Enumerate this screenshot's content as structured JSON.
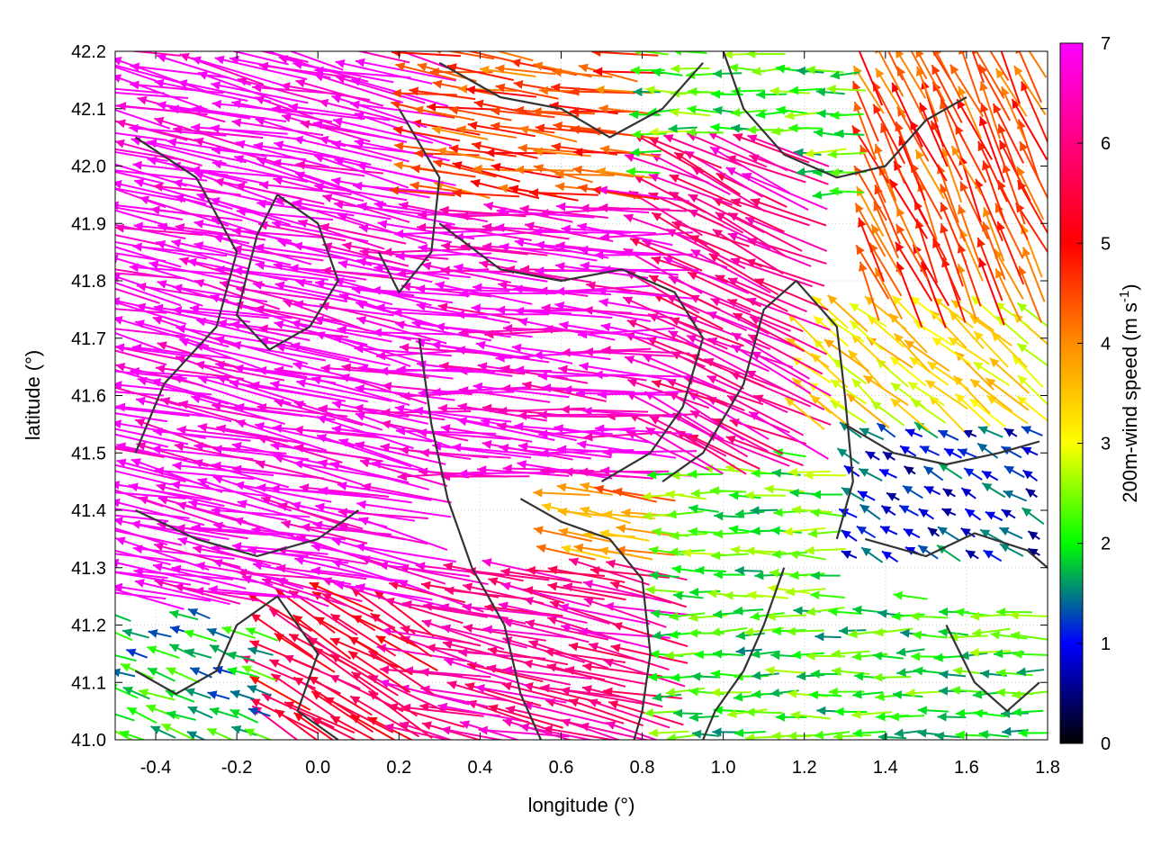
{
  "chart_data": {
    "type": "vector-field",
    "title": "",
    "xlabel": "longitude (°)",
    "ylabel": "latitude (°)",
    "xlim": [
      -0.5,
      1.8
    ],
    "ylim": [
      41.0,
      42.2
    ],
    "xticks": [
      "-0.4",
      "-0.2",
      "0.0",
      "0.2",
      "0.4",
      "0.6",
      "0.8",
      "1.0",
      "1.2",
      "1.4",
      "1.6",
      "1.8"
    ],
    "yticks": [
      "41.0",
      "41.1",
      "41.2",
      "41.3",
      "41.4",
      "41.5",
      "41.6",
      "41.7",
      "41.8",
      "41.9",
      "42.0",
      "42.1",
      "42.2"
    ],
    "grid": true,
    "colorbar": {
      "label_main": "200m-wind speed (m s",
      "label_sup": "-1",
      "label_close": ")",
      "range": [
        0,
        7
      ],
      "ticks": [
        "0",
        "1",
        "2",
        "3",
        "4",
        "5",
        "6",
        "7"
      ],
      "palette": [
        "#000000",
        "#0000ff",
        "#00ff00",
        "#ffff00",
        "#ff8c00",
        "#ff0000",
        "#ff00ff"
      ]
    },
    "wind_regions": [
      {
        "lon": [
          -0.5,
          0.25
        ],
        "lat": [
          41.25,
          42.2
        ],
        "speed": 7.0,
        "dir_deg": 168
      },
      {
        "lon": [
          0.25,
          0.85
        ],
        "lat": [
          41.45,
          41.95
        ],
        "speed": 6.8,
        "dir_deg": 176
      },
      {
        "lon": [
          0.85,
          1.2
        ],
        "lat": [
          41.5,
          42.05
        ],
        "speed": 6.2,
        "dir_deg": 155
      },
      {
        "lon": [
          0.25,
          0.8
        ],
        "lat": [
          41.95,
          42.2
        ],
        "speed": 4.5,
        "dir_deg": 172
      },
      {
        "lon": [
          0.8,
          1.35
        ],
        "lat": [
          41.95,
          42.2
        ],
        "speed": 2.2,
        "dir_deg": 180
      },
      {
        "lon": [
          1.35,
          1.8
        ],
        "lat": [
          41.75,
          42.2
        ],
        "speed": 4.5,
        "dir_deg": 115
      },
      {
        "lon": [
          1.2,
          1.8
        ],
        "lat": [
          41.55,
          41.75
        ],
        "speed": 3.2,
        "dir_deg": 140
      },
      {
        "lon": [
          1.3,
          1.8
        ],
        "lat": [
          41.3,
          41.55
        ],
        "speed": 1.1,
        "dir_deg": 150
      },
      {
        "lon": [
          0.85,
          1.3
        ],
        "lat": [
          41.25,
          41.5
        ],
        "speed": 2.2,
        "dir_deg": 178
      },
      {
        "lon": [
          0.6,
          0.85
        ],
        "lat": [
          41.3,
          41.5
        ],
        "speed": 4.0,
        "dir_deg": 170
      },
      {
        "lon": [
          0.85,
          1.8
        ],
        "lat": [
          41.0,
          41.25
        ],
        "speed": 2.1,
        "dir_deg": 180
      },
      {
        "lon": [
          0.25,
          0.85
        ],
        "lat": [
          41.0,
          41.3
        ],
        "speed": 6.2,
        "dir_deg": 168
      },
      {
        "lon": [
          -0.5,
          -0.1
        ],
        "lat": [
          41.0,
          41.22
        ],
        "speed": 1.8,
        "dir_deg": 160
      },
      {
        "lon": [
          -0.1,
          0.25
        ],
        "lat": [
          41.0,
          41.25
        ],
        "speed": 5.5,
        "dir_deg": 150
      }
    ],
    "contours": [
      [
        [
          -0.45,
          42.05
        ],
        [
          -0.3,
          41.98
        ],
        [
          -0.2,
          41.85
        ],
        [
          -0.25,
          41.72
        ],
        [
          -0.38,
          41.62
        ],
        [
          -0.45,
          41.5
        ]
      ],
      [
        [
          -0.1,
          41.95
        ],
        [
          0.0,
          41.9
        ],
        [
          0.05,
          41.8
        ],
        [
          -0.02,
          41.72
        ],
        [
          -0.12,
          41.68
        ],
        [
          -0.2,
          41.74
        ],
        [
          -0.15,
          41.88
        ],
        [
          -0.1,
          41.95
        ]
      ],
      [
        [
          0.2,
          42.1
        ],
        [
          0.3,
          41.98
        ],
        [
          0.28,
          41.85
        ],
        [
          0.2,
          41.78
        ],
        [
          0.15,
          41.85
        ]
      ],
      [
        [
          0.3,
          41.9
        ],
        [
          0.45,
          41.82
        ],
        [
          0.6,
          41.8
        ],
        [
          0.75,
          41.82
        ],
        [
          0.88,
          41.78
        ],
        [
          0.95,
          41.7
        ],
        [
          0.9,
          41.58
        ],
        [
          0.82,
          41.5
        ],
        [
          0.7,
          41.45
        ]
      ],
      [
        [
          0.25,
          41.7
        ],
        [
          0.28,
          41.55
        ],
        [
          0.32,
          41.42
        ],
        [
          0.38,
          41.3
        ],
        [
          0.46,
          41.2
        ],
        [
          0.5,
          41.08
        ],
        [
          0.55,
          41.0
        ]
      ],
      [
        [
          0.5,
          41.42
        ],
        [
          0.6,
          41.38
        ],
        [
          0.72,
          41.35
        ],
        [
          0.8,
          41.28
        ],
        [
          0.82,
          41.15
        ],
        [
          0.8,
          41.05
        ],
        [
          0.78,
          41.0
        ]
      ],
      [
        [
          0.85,
          41.45
        ],
        [
          0.95,
          41.5
        ],
        [
          1.05,
          41.62
        ],
        [
          1.1,
          41.75
        ],
        [
          1.18,
          41.8
        ],
        [
          1.28,
          41.72
        ],
        [
          1.3,
          41.6
        ],
        [
          1.32,
          41.45
        ],
        [
          1.28,
          41.35
        ]
      ],
      [
        [
          1.15,
          41.3
        ],
        [
          1.1,
          41.2
        ],
        [
          1.05,
          41.12
        ],
        [
          0.98,
          41.05
        ],
        [
          0.95,
          41.0
        ]
      ],
      [
        [
          1.35,
          41.35
        ],
        [
          1.5,
          41.32
        ],
        [
          1.62,
          41.36
        ],
        [
          1.75,
          41.33
        ],
        [
          1.8,
          41.3
        ]
      ],
      [
        [
          0.3,
          42.18
        ],
        [
          0.45,
          42.12
        ],
        [
          0.6,
          42.1
        ],
        [
          0.72,
          42.05
        ],
        [
          0.85,
          42.1
        ],
        [
          0.95,
          42.18
        ]
      ],
      [
        [
          1.0,
          42.2
        ],
        [
          1.05,
          42.1
        ],
        [
          1.15,
          42.02
        ],
        [
          1.28,
          41.98
        ],
        [
          1.4,
          42.0
        ],
        [
          1.5,
          42.08
        ],
        [
          1.6,
          42.12
        ]
      ],
      [
        [
          1.3,
          41.55
        ],
        [
          1.42,
          41.5
        ],
        [
          1.55,
          41.48
        ],
        [
          1.68,
          41.5
        ],
        [
          1.78,
          41.52
        ]
      ],
      [
        [
          -0.45,
          41.4
        ],
        [
          -0.3,
          41.35
        ],
        [
          -0.15,
          41.32
        ],
        [
          0.0,
          41.35
        ],
        [
          0.1,
          41.4
        ]
      ],
      [
        [
          -0.45,
          41.12
        ],
        [
          -0.35,
          41.08
        ],
        [
          -0.25,
          41.12
        ],
        [
          -0.2,
          41.2
        ],
        [
          -0.1,
          41.25
        ],
        [
          0.0,
          41.15
        ],
        [
          -0.05,
          41.05
        ],
        [
          0.05,
          41.0
        ]
      ],
      [
        [
          1.55,
          41.2
        ],
        [
          1.62,
          41.1
        ],
        [
          1.7,
          41.05
        ],
        [
          1.78,
          41.1
        ]
      ]
    ]
  }
}
